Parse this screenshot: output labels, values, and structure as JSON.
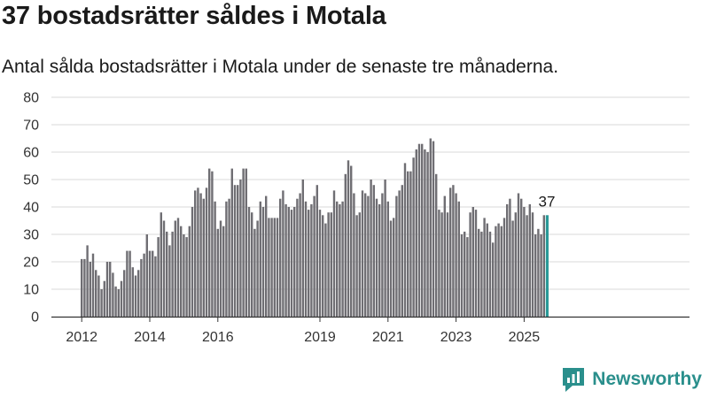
{
  "title": "37 bostadsrätter såldes i Motala",
  "subtitle": "Antal sålda bostadsrätter i Motala under de senaste tre månaderna.",
  "brand": "Newsworthy",
  "colors": {
    "bar": "#6f6e73",
    "highlight": "#2a9a98",
    "grid": "#d9d9d9",
    "brand": "#2a8f8c"
  },
  "chart_data": {
    "type": "bar",
    "title": "",
    "xlabel": "",
    "ylabel": "",
    "ylim": [
      0,
      80
    ],
    "yticks": [
      0,
      10,
      20,
      30,
      40,
      50,
      60,
      70,
      80
    ],
    "grid": true,
    "x_start": "2012-01",
    "x_end": "2025-08",
    "xtick_labels": [
      "2012",
      "2014",
      "2016",
      "2019",
      "2021",
      "2023",
      "2025"
    ],
    "values": [
      21,
      21,
      26,
      20,
      23,
      17,
      15,
      10,
      13,
      20,
      20,
      16,
      11,
      10,
      13,
      17,
      24,
      24,
      18,
      15,
      17,
      21,
      23,
      30,
      24,
      24,
      22,
      29,
      38,
      35,
      31,
      26,
      31,
      35,
      36,
      33,
      30,
      29,
      33,
      40,
      46,
      47,
      45,
      43,
      47,
      54,
      53,
      42,
      32,
      35,
      33,
      42,
      43,
      54,
      48,
      48,
      50,
      54,
      54,
      40,
      38,
      32,
      35,
      42,
      40,
      44,
      36,
      36,
      36,
      36,
      43,
      46,
      41,
      40,
      39,
      40,
      43,
      45,
      50,
      42,
      39,
      41,
      44,
      48,
      39,
      37,
      34,
      38,
      38,
      46,
      42,
      41,
      42,
      52,
      57,
      55,
      45,
      37,
      38,
      46,
      45,
      44,
      50,
      48,
      43,
      41,
      45,
      50,
      42,
      35,
      36,
      44,
      46,
      48,
      56,
      53,
      53,
      58,
      61,
      63,
      63,
      61,
      60,
      65,
      64,
      52,
      39,
      38,
      44,
      38,
      47,
      48,
      45,
      42,
      30,
      31,
      29,
      38,
      40,
      39,
      32,
      31,
      36,
      34,
      31,
      27,
      33,
      34,
      33,
      36,
      41,
      43,
      35,
      38,
      45,
      43,
      40,
      37,
      41,
      38,
      30,
      32,
      30,
      37,
      37
    ],
    "highlight_last": 1,
    "annotations": [
      {
        "text": "37"
      }
    ]
  }
}
